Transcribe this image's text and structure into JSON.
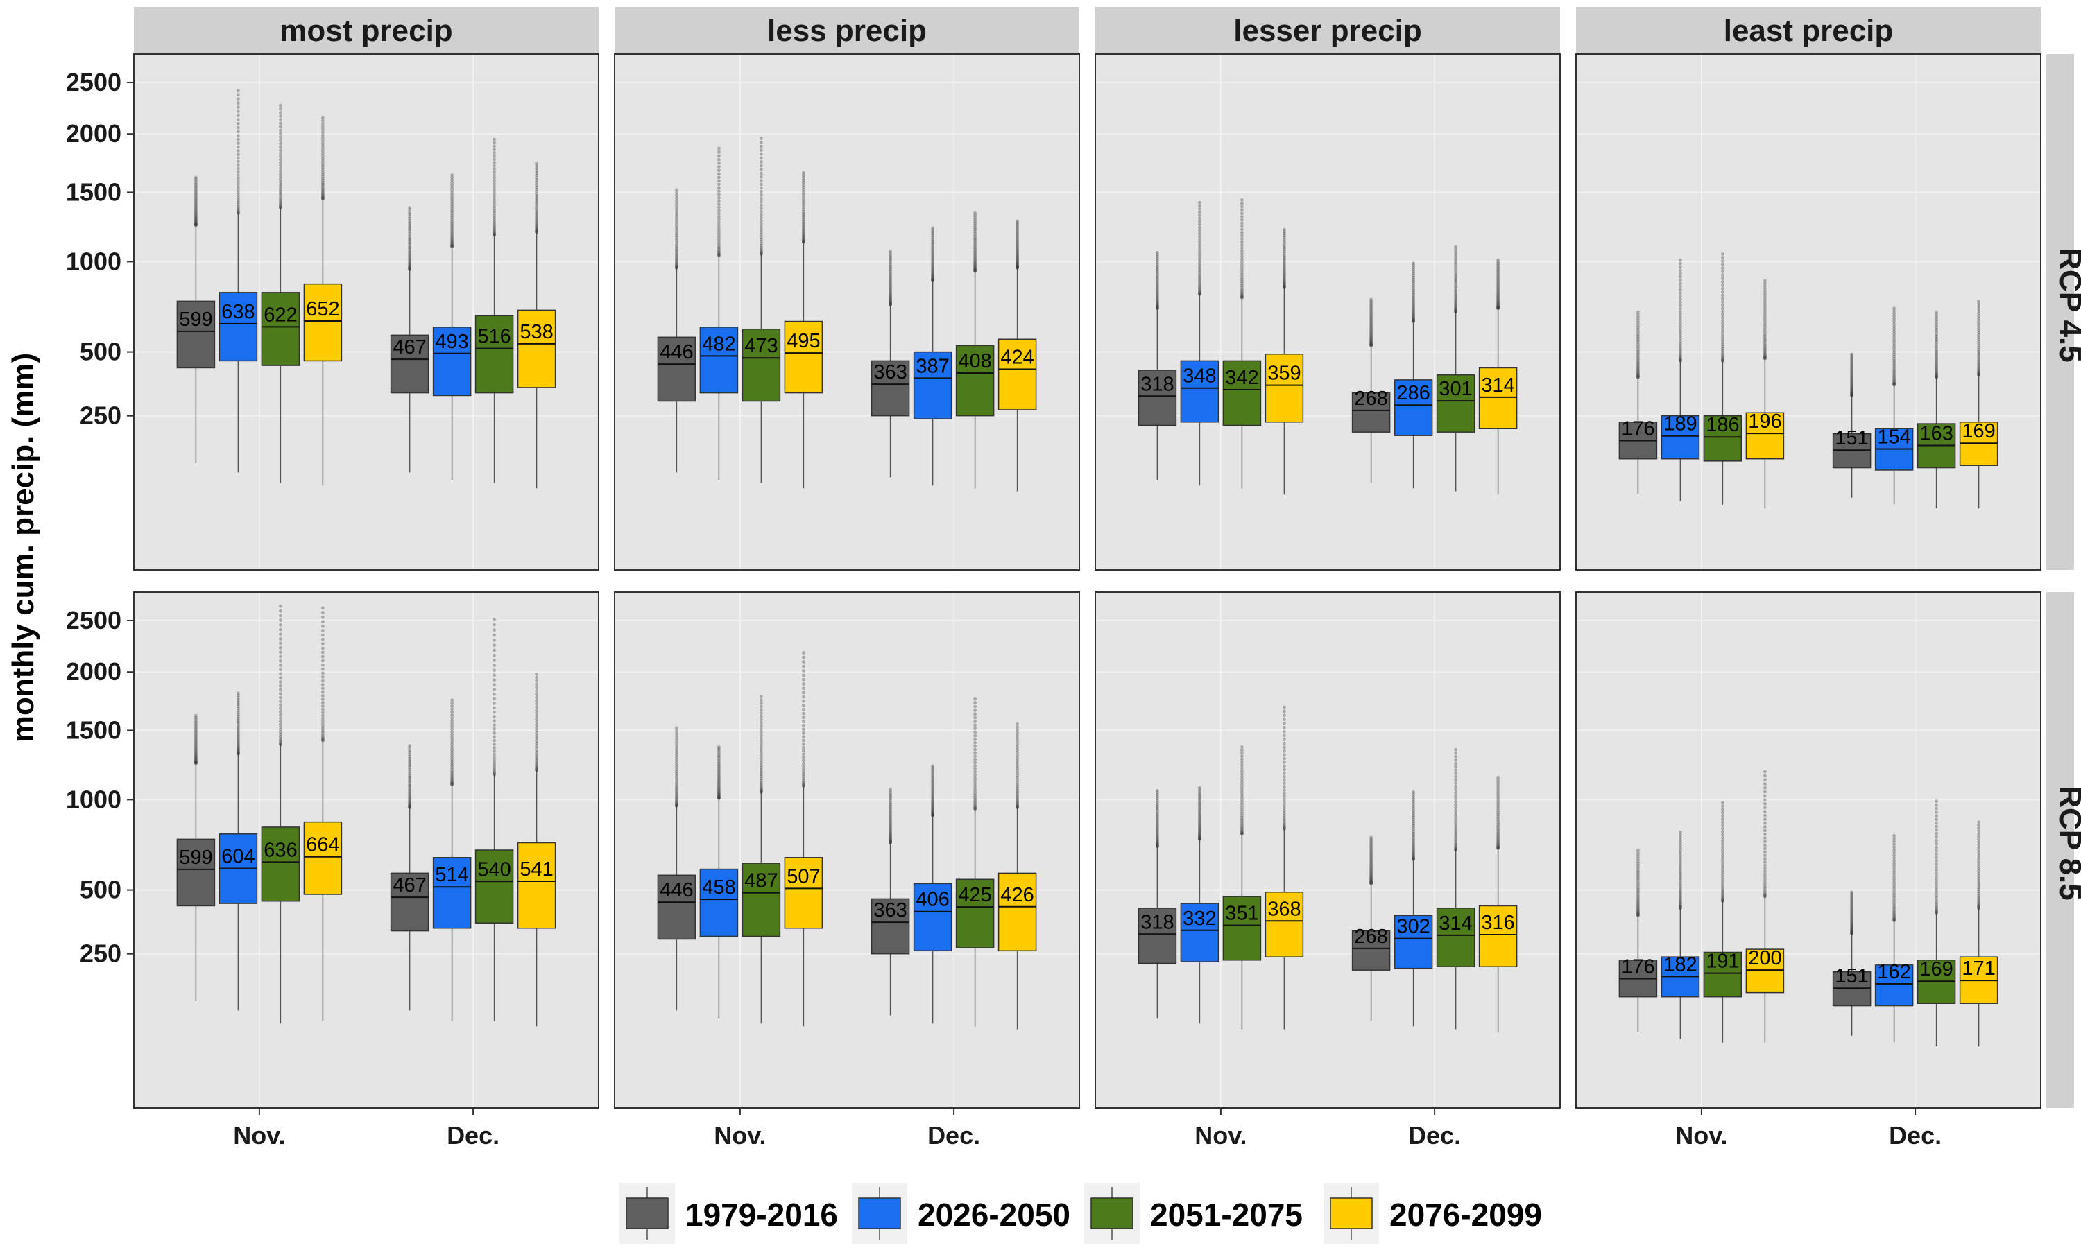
{
  "chart_data": {
    "type": "boxplot",
    "ylabel": "monthly cum. precip. (mm)",
    "y_ticks": [
      250,
      500,
      1000,
      1500,
      2000,
      2500
    ],
    "y_scale": "sqrt",
    "ylim": [
      0,
      2800
    ],
    "columns": [
      "most precip",
      "less precip",
      "lesser precip",
      "least precip"
    ],
    "rows": [
      "RCP 4.5",
      "RCP 8.5"
    ],
    "categories": [
      "Nov.",
      "Dec."
    ],
    "legend": {
      "position": "bottom",
      "entries": [
        "1979-2016",
        "2026-2050",
        "2051-2075",
        "2076-2099"
      ]
    },
    "colors": {
      "1979-2016": "#5f5f5f",
      "2026-2050": "#1a6ff0",
      "2051-2075": "#4d7a1a",
      "2076-2099": "#ffcc00",
      "panel_bg": "#e5e5e5",
      "strip_bg": "#d0d0d0"
    },
    "panels": [
      {
        "row": "RCP 4.5",
        "col": "most precip",
        "month": "Nov.",
        "boxes": [
          {
            "period": "1979-2016",
            "median": 599,
            "q1": 430,
            "q3": 760,
            "wlo": 120,
            "whi": 1250,
            "max": 1620
          },
          {
            "period": "2026-2050",
            "median": 638,
            "q1": 460,
            "q3": 810,
            "wlo": 100,
            "whi": 1340,
            "max": 2420
          },
          {
            "period": "2051-2075",
            "median": 622,
            "q1": 440,
            "q3": 810,
            "wlo": 80,
            "whi": 1380,
            "max": 2270
          },
          {
            "period": "2076-2099",
            "median": 652,
            "q1": 460,
            "q3": 860,
            "wlo": 75,
            "whi": 1450,
            "max": 2150
          }
        ]
      },
      {
        "row": "RCP 4.5",
        "col": "most precip",
        "month": "Dec.",
        "boxes": [
          {
            "period": "1979-2016",
            "median": 467,
            "q1": 330,
            "q3": 580,
            "wlo": 100,
            "whi": 950,
            "max": 1380
          },
          {
            "period": "2026-2050",
            "median": 493,
            "q1": 320,
            "q3": 620,
            "wlo": 85,
            "whi": 1100,
            "max": 1640
          },
          {
            "period": "2051-2075",
            "median": 516,
            "q1": 330,
            "q3": 680,
            "wlo": 80,
            "whi": 1180,
            "max": 1950
          },
          {
            "period": "2076-2099",
            "median": 538,
            "q1": 350,
            "q3": 710,
            "wlo": 70,
            "whi": 1200,
            "max": 1740
          }
        ]
      },
      {
        "row": "RCP 4.5",
        "col": "less precip",
        "month": "Nov.",
        "boxes": [
          {
            "period": "1979-2016",
            "median": 446,
            "q1": 300,
            "q3": 570,
            "wlo": 100,
            "whi": 960,
            "max": 1520
          },
          {
            "period": "2026-2050",
            "median": 482,
            "q1": 330,
            "q3": 620,
            "wlo": 85,
            "whi": 1040,
            "max": 1870
          },
          {
            "period": "2051-2075",
            "median": 473,
            "q1": 300,
            "q3": 610,
            "wlo": 80,
            "whi": 1050,
            "max": 1960
          },
          {
            "period": "2076-2099",
            "median": 495,
            "q1": 330,
            "q3": 650,
            "wlo": 70,
            "whi": 1130,
            "max": 1660
          }
        ]
      },
      {
        "row": "RCP 4.5",
        "col": "less precip",
        "month": "Dec.",
        "boxes": [
          {
            "period": "1979-2016",
            "median": 363,
            "q1": 250,
            "q3": 460,
            "wlo": 90,
            "whi": 740,
            "max": 1070
          },
          {
            "period": "2026-2050",
            "median": 387,
            "q1": 240,
            "q3": 500,
            "wlo": 75,
            "whi": 880,
            "max": 1230
          },
          {
            "period": "2051-2075",
            "median": 408,
            "q1": 250,
            "q3": 530,
            "wlo": 70,
            "whi": 940,
            "max": 1340
          },
          {
            "period": "2076-2099",
            "median": 424,
            "q1": 270,
            "q3": 560,
            "wlo": 65,
            "whi": 960,
            "max": 1280
          }
        ]
      },
      {
        "row": "RCP 4.5",
        "col": "lesser precip",
        "month": "Nov.",
        "boxes": [
          {
            "period": "1979-2016",
            "median": 318,
            "q1": 220,
            "q3": 420,
            "wlo": 85,
            "whi": 720,
            "max": 1060
          },
          {
            "period": "2026-2050",
            "median": 348,
            "q1": 230,
            "q3": 460,
            "wlo": 75,
            "whi": 800,
            "max": 1420
          },
          {
            "period": "2051-2075",
            "median": 342,
            "q1": 220,
            "q3": 460,
            "wlo": 70,
            "whi": 780,
            "max": 1440
          },
          {
            "period": "2076-2099",
            "median": 359,
            "q1": 230,
            "q3": 490,
            "wlo": 60,
            "whi": 840,
            "max": 1220
          }
        ]
      },
      {
        "row": "RCP 4.5",
        "col": "lesser precip",
        "month": "Dec.",
        "boxes": [
          {
            "period": "1979-2016",
            "median": 268,
            "q1": 200,
            "q3": 330,
            "wlo": 80,
            "whi": 530,
            "max": 770
          },
          {
            "period": "2026-2050",
            "median": 286,
            "q1": 190,
            "q3": 380,
            "wlo": 70,
            "whi": 650,
            "max": 990
          },
          {
            "period": "2051-2075",
            "median": 301,
            "q1": 200,
            "q3": 400,
            "wlo": 65,
            "whi": 700,
            "max": 1100
          },
          {
            "period": "2076-2099",
            "median": 314,
            "q1": 210,
            "q3": 430,
            "wlo": 60,
            "whi": 720,
            "max": 1010
          }
        ]
      },
      {
        "row": "RCP 4.5",
        "col": "least precip",
        "month": "Nov.",
        "boxes": [
          {
            "period": "1979-2016",
            "median": 176,
            "q1": 130,
            "q3": 230,
            "wlo": 60,
            "whi": 390,
            "max": 700
          },
          {
            "period": "2026-2050",
            "median": 189,
            "q1": 130,
            "q3": 250,
            "wlo": 50,
            "whi": 460,
            "max": 1010
          },
          {
            "period": "2051-2075",
            "median": 186,
            "q1": 125,
            "q3": 250,
            "wlo": 45,
            "whi": 460,
            "max": 1050
          },
          {
            "period": "2076-2099",
            "median": 196,
            "q1": 130,
            "q3": 260,
            "wlo": 40,
            "whi": 470,
            "max": 880
          }
        ]
      },
      {
        "row": "RCP 4.5",
        "col": "least precip",
        "month": "Dec.",
        "boxes": [
          {
            "period": "1979-2016",
            "median": 151,
            "q1": 110,
            "q3": 195,
            "wlo": 55,
            "whi": 320,
            "max": 490
          },
          {
            "period": "2026-2050",
            "median": 154,
            "q1": 105,
            "q3": 210,
            "wlo": 45,
            "whi": 360,
            "max": 720
          },
          {
            "period": "2051-2075",
            "median": 163,
            "q1": 110,
            "q3": 225,
            "wlo": 40,
            "whi": 390,
            "max": 700
          },
          {
            "period": "2076-2099",
            "median": 169,
            "q1": 115,
            "q3": 230,
            "wlo": 40,
            "whi": 400,
            "max": 760
          }
        ]
      },
      {
        "row": "RCP 8.5",
        "col": "most precip",
        "month": "Nov.",
        "boxes": [
          {
            "period": "1979-2016",
            "median": 599,
            "q1": 430,
            "q3": 760,
            "wlo": 120,
            "whi": 1250,
            "max": 1620
          },
          {
            "period": "2026-2050",
            "median": 604,
            "q1": 440,
            "q3": 790,
            "wlo": 100,
            "whi": 1320,
            "max": 1810
          },
          {
            "period": "2051-2075",
            "median": 636,
            "q1": 450,
            "q3": 830,
            "wlo": 75,
            "whi": 1390,
            "max": 2650
          },
          {
            "period": "2076-2099",
            "median": 664,
            "q1": 480,
            "q3": 860,
            "wlo": 80,
            "whi": 1420,
            "max": 2630
          }
        ]
      },
      {
        "row": "RCP 8.5",
        "col": "most precip",
        "month": "Dec.",
        "boxes": [
          {
            "period": "1979-2016",
            "median": 467,
            "q1": 330,
            "q3": 580,
            "wlo": 100,
            "whi": 950,
            "max": 1380
          },
          {
            "period": "2026-2050",
            "median": 514,
            "q1": 340,
            "q3": 660,
            "wlo": 80,
            "whi": 1100,
            "max": 1750
          },
          {
            "period": "2051-2075",
            "median": 540,
            "q1": 360,
            "q3": 700,
            "wlo": 80,
            "whi": 1170,
            "max": 2510
          },
          {
            "period": "2076-2099",
            "median": 541,
            "q1": 340,
            "q3": 740,
            "wlo": 70,
            "whi": 1200,
            "max": 1980
          }
        ]
      },
      {
        "row": "RCP 8.5",
        "col": "less precip",
        "month": "Nov.",
        "boxes": [
          {
            "period": "1979-2016",
            "median": 446,
            "q1": 300,
            "q3": 570,
            "wlo": 100,
            "whi": 960,
            "max": 1520
          },
          {
            "period": "2026-2050",
            "median": 458,
            "q1": 310,
            "q3": 600,
            "wlo": 85,
            "whi": 1010,
            "max": 1370
          },
          {
            "period": "2051-2075",
            "median": 487,
            "q1": 310,
            "q3": 630,
            "wlo": 75,
            "whi": 1050,
            "max": 1780
          },
          {
            "period": "2076-2099",
            "median": 507,
            "q1": 340,
            "q3": 660,
            "wlo": 70,
            "whi": 1090,
            "max": 2180
          }
        ]
      },
      {
        "row": "RCP 8.5",
        "col": "less precip",
        "month": "Dec.",
        "boxes": [
          {
            "period": "1979-2016",
            "median": 363,
            "q1": 250,
            "q3": 460,
            "wlo": 90,
            "whi": 740,
            "max": 1070
          },
          {
            "period": "2026-2050",
            "median": 406,
            "q1": 260,
            "q3": 530,
            "wlo": 75,
            "whi": 900,
            "max": 1230
          },
          {
            "period": "2051-2075",
            "median": 425,
            "q1": 270,
            "q3": 550,
            "wlo": 70,
            "whi": 940,
            "max": 1760
          },
          {
            "period": "2076-2099",
            "median": 426,
            "q1": 260,
            "q3": 580,
            "wlo": 65,
            "whi": 950,
            "max": 1550
          }
        ]
      },
      {
        "row": "RCP 8.5",
        "col": "lesser precip",
        "month": "Nov.",
        "boxes": [
          {
            "period": "1979-2016",
            "median": 318,
            "q1": 220,
            "q3": 420,
            "wlo": 85,
            "whi": 720,
            "max": 1060
          },
          {
            "period": "2026-2050",
            "median": 332,
            "q1": 225,
            "q3": 440,
            "wlo": 75,
            "whi": 760,
            "max": 1080
          },
          {
            "period": "2051-2075",
            "median": 351,
            "q1": 230,
            "q3": 470,
            "wlo": 65,
            "whi": 790,
            "max": 1370
          },
          {
            "period": "2076-2099",
            "median": 368,
            "q1": 240,
            "q3": 490,
            "wlo": 65,
            "whi": 820,
            "max": 1690
          }
        ]
      },
      {
        "row": "RCP 8.5",
        "col": "lesser precip",
        "month": "Dec.",
        "boxes": [
          {
            "period": "1979-2016",
            "median": 268,
            "q1": 200,
            "q3": 330,
            "wlo": 80,
            "whi": 530,
            "max": 770
          },
          {
            "period": "2026-2050",
            "median": 302,
            "q1": 205,
            "q3": 390,
            "wlo": 70,
            "whi": 650,
            "max": 1050
          },
          {
            "period": "2051-2075",
            "median": 314,
            "q1": 210,
            "q3": 420,
            "wlo": 65,
            "whi": 700,
            "max": 1350
          },
          {
            "period": "2076-2099",
            "median": 316,
            "q1": 210,
            "q3": 430,
            "wlo": 60,
            "whi": 710,
            "max": 1150
          }
        ]
      },
      {
        "row": "RCP 8.5",
        "col": "least precip",
        "month": "Nov.",
        "boxes": [
          {
            "period": "1979-2016",
            "median": 176,
            "q1": 130,
            "q3": 230,
            "wlo": 60,
            "whi": 390,
            "max": 700
          },
          {
            "period": "2026-2050",
            "median": 182,
            "q1": 130,
            "q3": 240,
            "wlo": 50,
            "whi": 420,
            "max": 800
          },
          {
            "period": "2051-2075",
            "median": 191,
            "q1": 130,
            "q3": 255,
            "wlo": 45,
            "whi": 450,
            "max": 980
          },
          {
            "period": "2076-2099",
            "median": 200,
            "q1": 140,
            "q3": 265,
            "wlo": 45,
            "whi": 470,
            "max": 1190
          }
        ]
      },
      {
        "row": "RCP 8.5",
        "col": "least precip",
        "month": "Dec.",
        "boxes": [
          {
            "period": "1979-2016",
            "median": 151,
            "q1": 110,
            "q3": 195,
            "wlo": 55,
            "whi": 320,
            "max": 490
          },
          {
            "period": "2026-2050",
            "median": 162,
            "q1": 110,
            "q3": 215,
            "wlo": 45,
            "whi": 370,
            "max": 780
          },
          {
            "period": "2051-2075",
            "median": 169,
            "q1": 115,
            "q3": 230,
            "wlo": 40,
            "whi": 400,
            "max": 990
          },
          {
            "period": "2076-2099",
            "median": 171,
            "q1": 115,
            "q3": 240,
            "wlo": 40,
            "whi": 420,
            "max": 860
          }
        ]
      }
    ]
  }
}
